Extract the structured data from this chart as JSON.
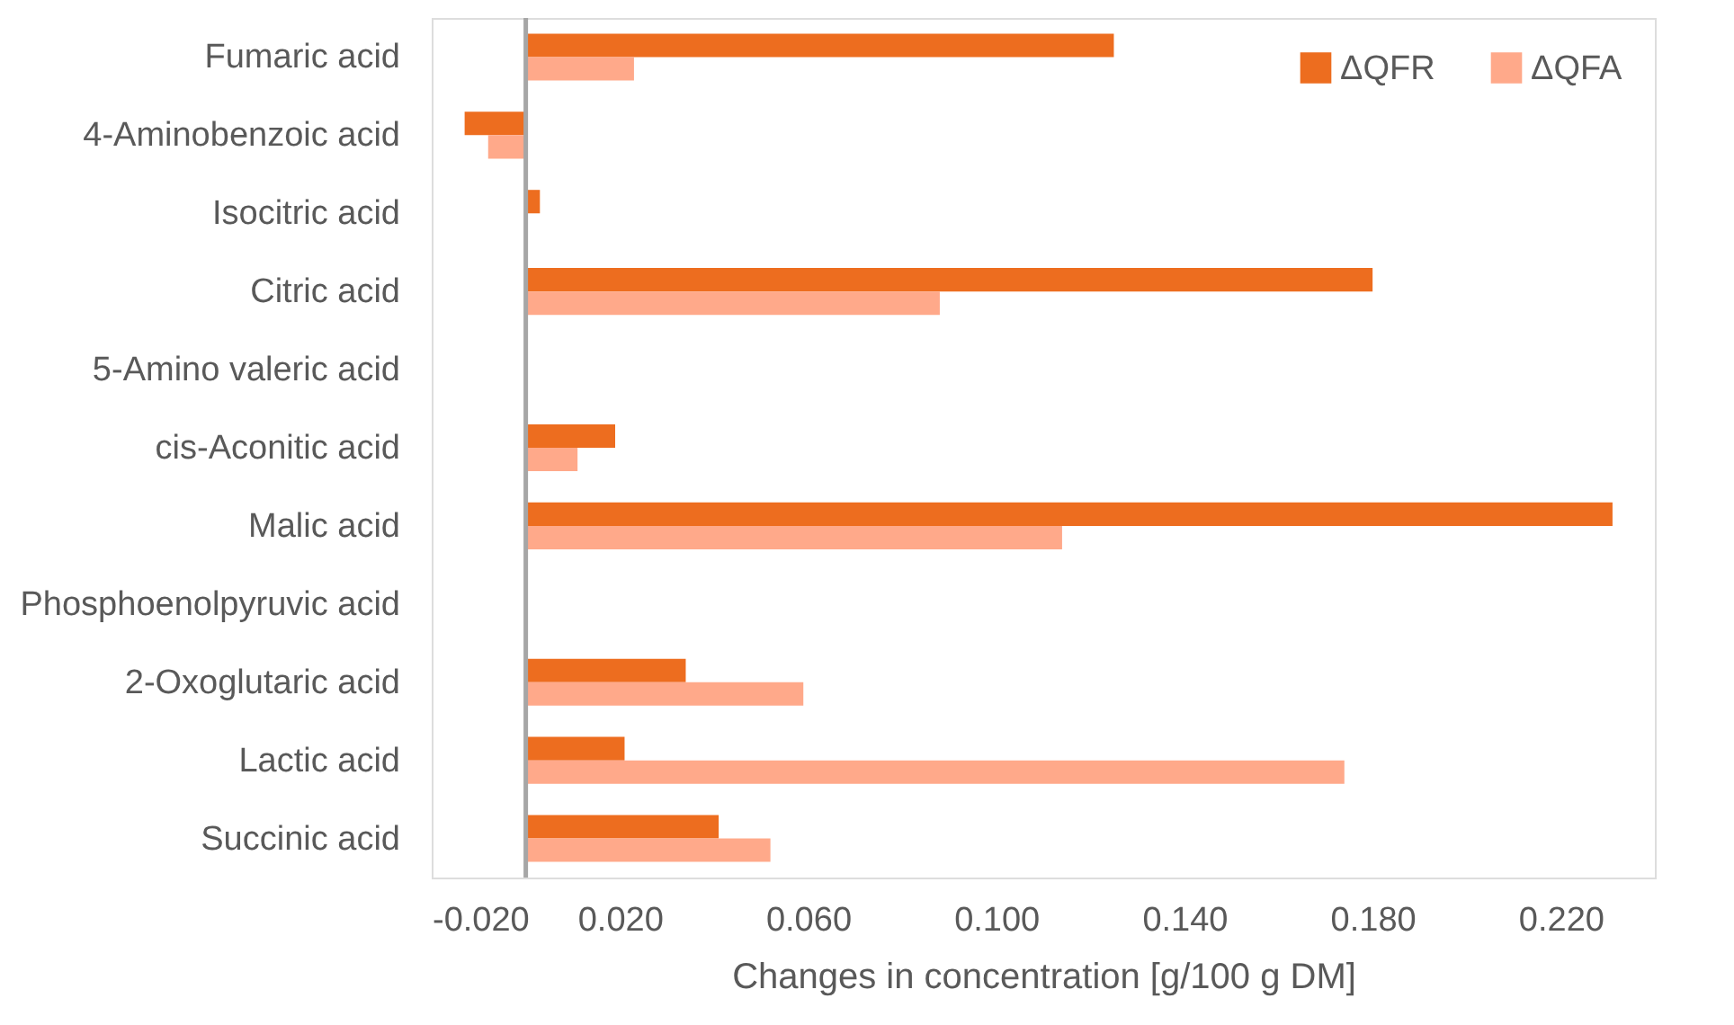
{
  "chart_data": {
    "type": "bar",
    "orientation": "horizontal",
    "xlabel": "Changes in concentration [g/100 g DM]",
    "categories": [
      "Fumaric acid",
      "4-Aminobenzoic acid",
      "Isocitric acid",
      "Citric acid",
      "5-Amino valeric acid",
      "cis-Aconitic acid",
      "Malic acid",
      "Phosphoenolpyruvic acid",
      "2-Oxoglutaric acid",
      "Lactic acid",
      "Succinic acid"
    ],
    "series": [
      {
        "name": "ΔQFR",
        "color": "#ed6d1f",
        "values": [
          0.125,
          -0.013,
          0.003,
          0.18,
          null,
          0.019,
          0.231,
          null,
          0.034,
          0.021,
          0.041
        ]
      },
      {
        "name": "ΔQFA",
        "color": "#ffa98a",
        "values": [
          0.023,
          -0.008,
          null,
          0.088,
          null,
          0.011,
          0.114,
          null,
          0.059,
          0.174,
          0.052
        ]
      }
    ],
    "xlim": [
      -0.02,
      0.24
    ],
    "xticks": [
      {
        "value": -0.02,
        "label": "-0.020"
      },
      {
        "value": 0.02,
        "label": "0.020"
      },
      {
        "value": 0.06,
        "label": "0.060"
      },
      {
        "value": 0.1,
        "label": "0.100"
      },
      {
        "value": 0.14,
        "label": "0.140"
      },
      {
        "value": 0.18,
        "label": "0.180"
      },
      {
        "value": 0.22,
        "label": "0.220"
      }
    ],
    "grid": false,
    "legend": "top right"
  }
}
